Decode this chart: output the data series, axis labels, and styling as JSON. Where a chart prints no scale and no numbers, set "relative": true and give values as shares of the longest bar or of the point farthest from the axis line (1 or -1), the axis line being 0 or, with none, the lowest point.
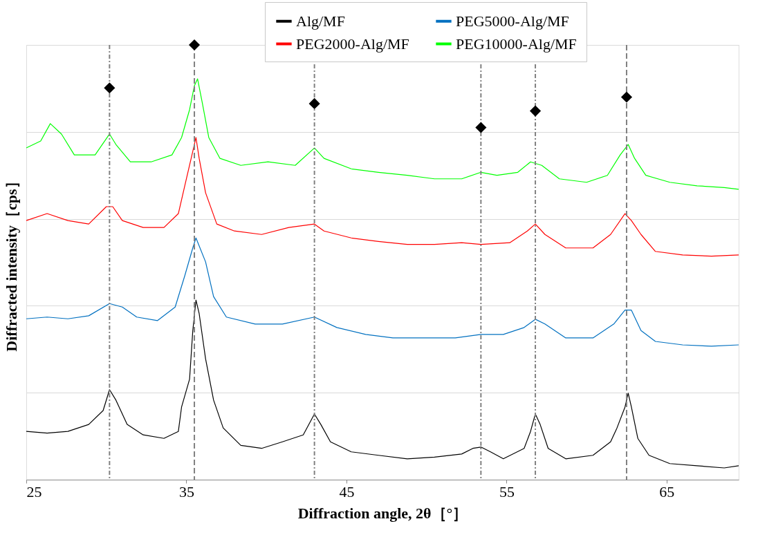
{
  "chart_data": {
    "type": "line",
    "relative": true,
    "xlabel": "Diffraction angle, 2θ［°］",
    "ylabel": "Diffracted intensity［cps］",
    "xlim": [
      25,
      69.5
    ],
    "xticks": [
      25,
      35,
      45,
      55,
      65
    ],
    "grid": "y",
    "legend": "top right",
    "line_style": "solid",
    "series": [
      {
        "name": "Alg/MF",
        "color": "#000000",
        "x": [
          25.0,
          26.3,
          27.6,
          28.9,
          29.8,
          30.2,
          30.6,
          31.3,
          32.3,
          33.6,
          34.5,
          34.7,
          35.2,
          35.4,
          35.6,
          35.8,
          36.2,
          36.7,
          37.3,
          38.4,
          39.7,
          41.0,
          42.3,
          43.0,
          43.4,
          44.0,
          45.3,
          47.0,
          48.8,
          50.5,
          52.2,
          52.9,
          53.4,
          54.0,
          54.8,
          56.1,
          56.5,
          56.8,
          57.1,
          57.6,
          58.7,
          60.4,
          61.5,
          61.9,
          62.4,
          62.6,
          62.8,
          63.2,
          63.9,
          65.2,
          66.9,
          68.6,
          69.5
        ],
        "values": [
          0.111,
          0.107,
          0.111,
          0.127,
          0.159,
          0.207,
          0.183,
          0.127,
          0.103,
          0.095,
          0.111,
          0.167,
          0.231,
          0.342,
          0.413,
          0.382,
          0.278,
          0.183,
          0.119,
          0.079,
          0.072,
          0.087,
          0.103,
          0.151,
          0.127,
          0.087,
          0.064,
          0.056,
          0.048,
          0.052,
          0.059,
          0.072,
          0.075,
          0.064,
          0.048,
          0.072,
          0.111,
          0.151,
          0.127,
          0.072,
          0.048,
          0.056,
          0.087,
          0.119,
          0.167,
          0.199,
          0.167,
          0.095,
          0.056,
          0.037,
          0.032,
          0.027,
          0.032
        ]
      },
      {
        "name": "PEG2000-Alg/MF",
        "color": "#ff0000",
        "x": [
          25.0,
          26.3,
          27.6,
          28.9,
          30.0,
          30.4,
          31.0,
          32.3,
          33.6,
          34.5,
          34.9,
          35.4,
          35.6,
          35.8,
          36.2,
          36.9,
          38.0,
          39.7,
          41.4,
          43.0,
          43.6,
          45.3,
          47.0,
          48.8,
          50.5,
          52.2,
          53.4,
          55.2,
          56.3,
          56.8,
          57.4,
          58.7,
          60.4,
          61.5,
          62.4,
          62.8,
          63.4,
          64.3,
          66.0,
          67.8,
          69.5
        ],
        "values": [
          0.596,
          0.612,
          0.596,
          0.588,
          0.628,
          0.628,
          0.596,
          0.58,
          0.58,
          0.612,
          0.676,
          0.755,
          0.787,
          0.739,
          0.66,
          0.588,
          0.572,
          0.564,
          0.58,
          0.588,
          0.572,
          0.556,
          0.548,
          0.541,
          0.541,
          0.545,
          0.541,
          0.545,
          0.572,
          0.588,
          0.564,
          0.533,
          0.533,
          0.564,
          0.612,
          0.596,
          0.564,
          0.525,
          0.517,
          0.514,
          0.517
        ]
      },
      {
        "name": "PEG5000-Alg/MF",
        "color": "#0070c0",
        "x": [
          25.0,
          26.3,
          27.6,
          28.9,
          30.2,
          31.0,
          31.9,
          33.2,
          34.3,
          34.9,
          35.4,
          35.6,
          36.2,
          36.7,
          37.5,
          39.3,
          41.0,
          43.0,
          44.4,
          46.2,
          47.9,
          49.6,
          51.8,
          53.4,
          54.8,
          56.1,
          56.8,
          57.4,
          58.7,
          60.4,
          61.7,
          62.4,
          62.8,
          63.4,
          64.3,
          66.0,
          67.8,
          69.5
        ],
        "values": [
          0.37,
          0.374,
          0.37,
          0.377,
          0.405,
          0.397,
          0.374,
          0.366,
          0.397,
          0.469,
          0.533,
          0.556,
          0.501,
          0.421,
          0.374,
          0.358,
          0.358,
          0.374,
          0.35,
          0.334,
          0.326,
          0.326,
          0.326,
          0.334,
          0.334,
          0.35,
          0.369,
          0.358,
          0.326,
          0.326,
          0.358,
          0.39,
          0.39,
          0.343,
          0.318,
          0.31,
          0.307,
          0.31
        ]
      },
      {
        "name": "PEG10000-Alg/MF",
        "color": "#00ff00",
        "x": [
          25.0,
          25.9,
          26.5,
          27.2,
          28.0,
          29.3,
          30.2,
          30.6,
          31.5,
          32.8,
          34.1,
          34.7,
          35.2,
          35.5,
          35.7,
          36.0,
          36.4,
          37.1,
          38.4,
          40.1,
          41.8,
          43.0,
          43.6,
          45.3,
          47.0,
          48.8,
          50.5,
          52.2,
          53.4,
          54.4,
          55.7,
          56.5,
          57.2,
          58.3,
          60.0,
          61.3,
          62.1,
          62.6,
          63.0,
          63.7,
          65.2,
          66.9,
          68.6,
          69.5
        ],
        "values": [
          0.763,
          0.779,
          0.819,
          0.795,
          0.747,
          0.747,
          0.795,
          0.771,
          0.731,
          0.731,
          0.747,
          0.787,
          0.851,
          0.906,
          0.922,
          0.866,
          0.787,
          0.739,
          0.723,
          0.731,
          0.723,
          0.763,
          0.739,
          0.715,
          0.707,
          0.7,
          0.692,
          0.692,
          0.707,
          0.7,
          0.707,
          0.731,
          0.723,
          0.692,
          0.684,
          0.7,
          0.747,
          0.771,
          0.739,
          0.7,
          0.684,
          0.676,
          0.672,
          0.668
        ]
      },
      {
        "type": "scatter",
        "marker": "diamond",
        "color": "#000000",
        "x": [
          30.2,
          35.5,
          43.0,
          53.4,
          56.8,
          62.5
        ],
        "values": [
          0.901,
          1.0,
          0.865,
          0.81,
          0.848,
          0.88
        ]
      }
    ],
    "ref_lines": [
      {
        "axis": "x",
        "value": 30.2,
        "color": "#808080",
        "line_style": "dashdot"
      },
      {
        "axis": "x",
        "value": 35.5,
        "color": "#808080",
        "line_style": "dashed"
      },
      {
        "axis": "x",
        "value": 43.0,
        "color": "#808080",
        "line_style": "dashdot"
      },
      {
        "axis": "x",
        "value": 53.4,
        "color": "#808080",
        "line_style": "dashdot"
      },
      {
        "axis": "x",
        "value": 56.8,
        "color": "#808080",
        "line_style": "dashdot"
      },
      {
        "axis": "x",
        "value": 62.5,
        "color": "#808080",
        "line_style": "dashed"
      }
    ]
  }
}
